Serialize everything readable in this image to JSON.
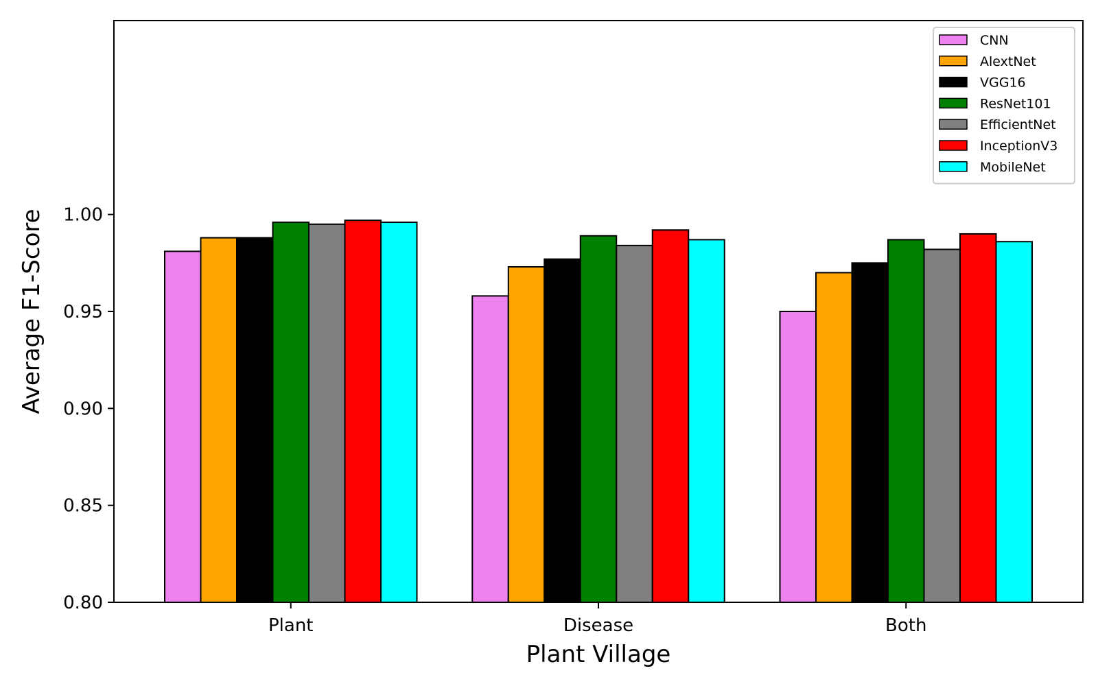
{
  "chart_data": {
    "type": "bar",
    "title": "",
    "xlabel": "Plant Village",
    "ylabel": "Average F1-Score",
    "categories": [
      "Plant",
      "Disease",
      "Both"
    ],
    "ylim": [
      0.8,
      1.1
    ],
    "yticks": [
      "0.80",
      "0.85",
      "0.90",
      "0.95",
      "1.00"
    ],
    "grid": false,
    "legend_position": "top-right",
    "series": [
      {
        "name": "CNN",
        "color": "#ee82ee",
        "values": [
          0.981,
          0.958,
          0.95
        ]
      },
      {
        "name": "AlextNet",
        "color": "#ffa500",
        "values": [
          0.988,
          0.973,
          0.97
        ]
      },
      {
        "name": "VGG16",
        "color": "#000000",
        "values": [
          0.988,
          0.977,
          0.975
        ]
      },
      {
        "name": "ResNet101",
        "color": "#008000",
        "values": [
          0.996,
          0.989,
          0.987
        ]
      },
      {
        "name": "EfficientNet",
        "color": "#808080",
        "values": [
          0.995,
          0.984,
          0.982
        ]
      },
      {
        "name": "InceptionV3",
        "color": "#ff0000",
        "values": [
          0.997,
          0.992,
          0.99
        ]
      },
      {
        "name": "MobileNet",
        "color": "#00ffff",
        "values": [
          0.996,
          0.987,
          0.986
        ]
      }
    ]
  }
}
